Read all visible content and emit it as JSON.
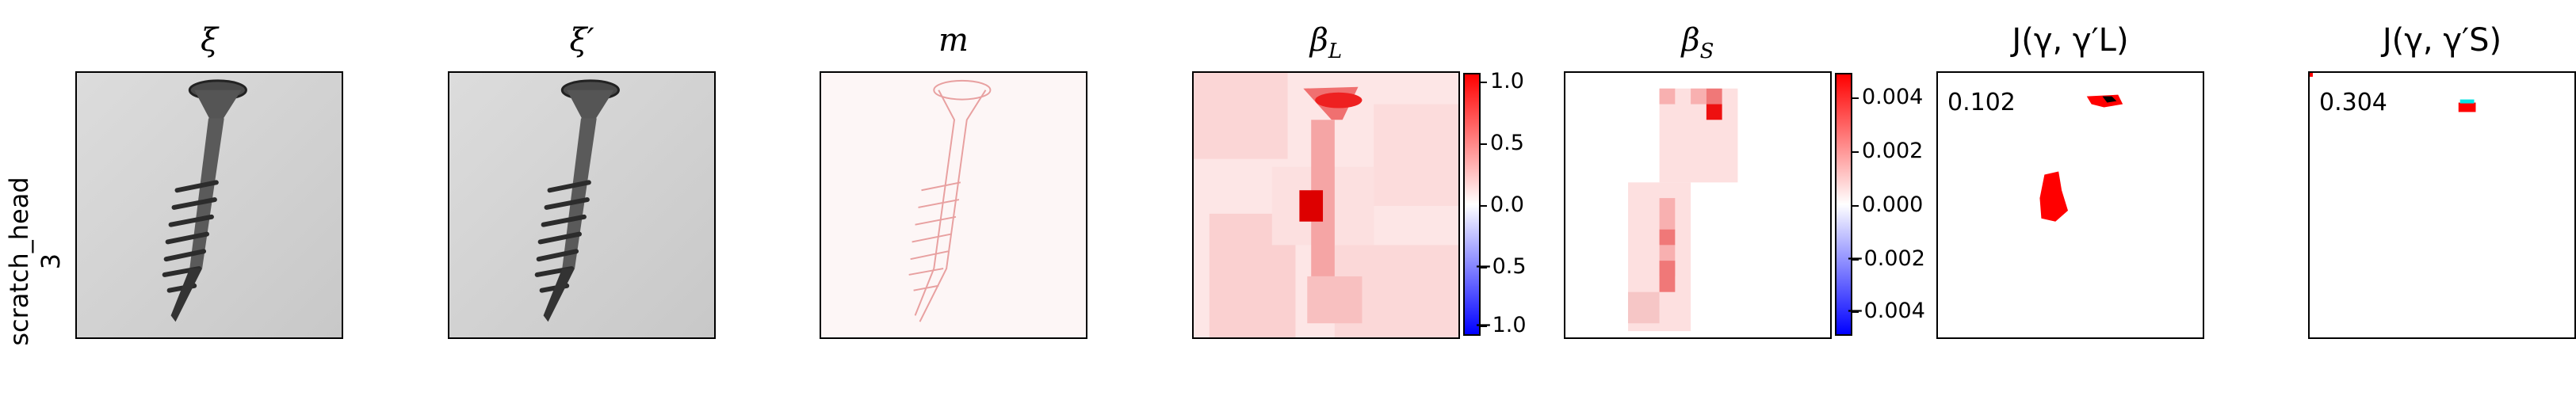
{
  "row_label": {
    "line1": "scratch_head",
    "line2": "3"
  },
  "panels": {
    "xi": {
      "title": "ξ"
    },
    "xi_prime": {
      "title": "ξ′"
    },
    "m": {
      "title": "m"
    },
    "beta_L": {
      "title": "β",
      "sub": "L"
    },
    "beta_S": {
      "title": "β",
      "sub": "S"
    },
    "J_L": {
      "title": "J(γ, γ′L)",
      "score": "0.102"
    },
    "J_S": {
      "title": "J(γ, γ′S)",
      "score": "0.304"
    }
  },
  "colorbar_L": {
    "ticks": [
      "1.0",
      "0.5",
      "0.0",
      "−0.5",
      "−1.0"
    ]
  },
  "colorbar_S": {
    "ticks": [
      "0.004",
      "0.002",
      "0.000",
      "−0.002",
      "−0.004"
    ]
  },
  "colors": {
    "cbar_pos": "#ff0000",
    "cbar_mid": "#ffffff",
    "cbar_neg": "#0000ff",
    "overlay": "#ff0000",
    "overlay_extra": "#00ffff"
  }
}
